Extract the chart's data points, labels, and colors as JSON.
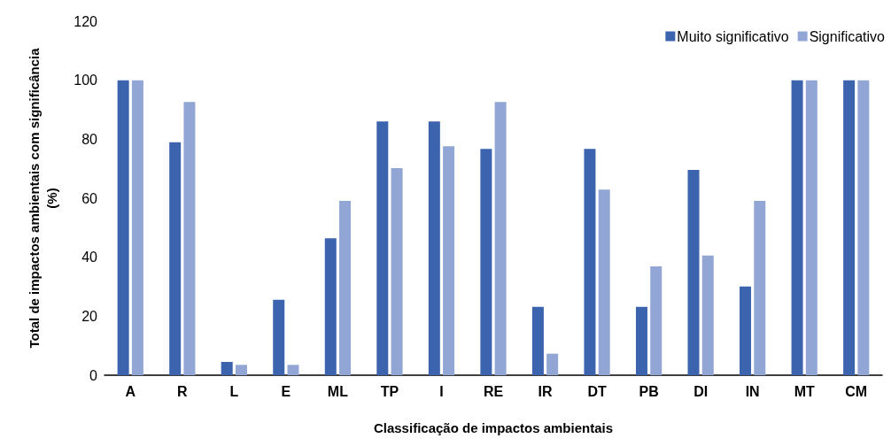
{
  "chart_data": {
    "type": "bar",
    "xlabel": "Classificação de impactos ambientais",
    "ylabel": "Total de impactos ambientais com significância\n(%)",
    "categories": [
      "A",
      "R",
      "L",
      "E",
      "ML",
      "TP",
      "I",
      "RE",
      "IR",
      "DT",
      "PB",
      "DI",
      "IN",
      "MT",
      "CM"
    ],
    "series": [
      {
        "name": "Muito significativo",
        "color": "#3c64ae",
        "values": [
          100,
          79,
          4.5,
          25.6,
          46.4,
          86,
          86,
          76.7,
          23.2,
          76.7,
          23.2,
          69.6,
          30.1,
          100,
          100
        ]
      },
      {
        "name": "Significativo",
        "color": "#91a6d5",
        "values": [
          100,
          92.6,
          3.5,
          3.5,
          59.1,
          70.2,
          77.6,
          92.6,
          7.3,
          62.9,
          36.9,
          40.6,
          59.1,
          100,
          100
        ]
      }
    ],
    "ylim": [
      0,
      120
    ],
    "yticks": [
      0,
      20,
      40,
      60,
      80,
      100,
      120
    ],
    "grid": false,
    "legend": "top right"
  }
}
